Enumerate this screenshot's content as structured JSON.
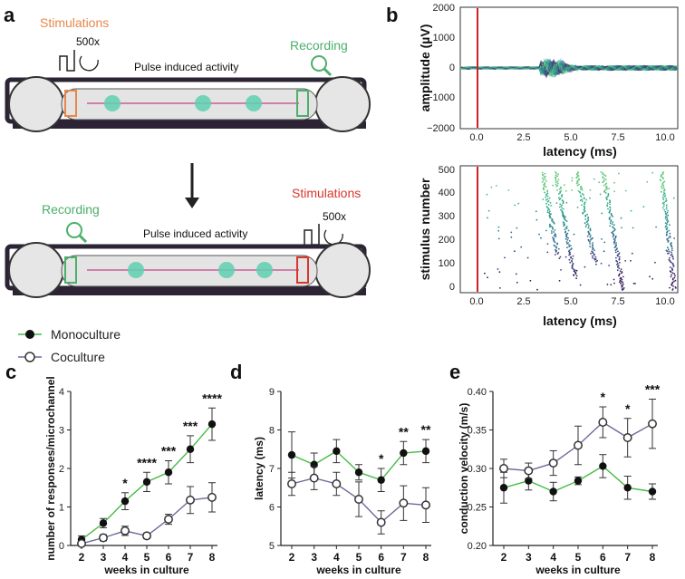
{
  "panel_a": {
    "letter": "a",
    "top": {
      "stim_label": "Stimulations",
      "stim_count": "500x",
      "rec_label": "Recording",
      "activity_label": "Pulse induced activity"
    },
    "bottom": {
      "stim_label": "Stimulations",
      "stim_count": "500x",
      "rec_label": "Recording",
      "activity_label": "Pulse induced activity"
    },
    "colors": {
      "stim_top": "#e8874a",
      "stim_bottom": "#d9352c",
      "recording": "#4caf6a",
      "channel": "#2c2434",
      "soma": "#5fd0b0"
    }
  },
  "panel_b": {
    "letter": "b",
    "top_plot": {
      "ylabel": "amplitude (µV)",
      "xlabel": "latency (ms)",
      "yticks": [
        "2000",
        "1000",
        "0",
        "−1000",
        "−2000"
      ],
      "xticks": [
        "0.0",
        "2.5",
        "5.0",
        "7.5",
        "10.0"
      ]
    },
    "bottom_plot": {
      "ylabel": "stimulus number",
      "xlabel": "latency (ms)",
      "yticks": [
        "500",
        "400",
        "300",
        "200",
        "100",
        "0"
      ],
      "xticks": [
        "0.0",
        "2.5",
        "5.0",
        "7.5",
        "10.0"
      ]
    },
    "stim_marker_color": "#cc2222"
  },
  "legend": {
    "mono_label": "Monoculture",
    "co_label": "Coculture",
    "mono_color": "#44bb44",
    "co_color": "#6a6a9a"
  },
  "chart_data": [
    {
      "panel": "c",
      "type": "line",
      "ylabel": "number of responses/microchannel",
      "xlabel": "weeks in culture",
      "x": [
        2,
        3,
        4,
        5,
        6,
        7,
        8
      ],
      "ylim": [
        0,
        4
      ],
      "yticks": [
        0,
        1,
        2,
        3,
        4
      ],
      "series": [
        {
          "name": "Monoculture",
          "values": [
            0.15,
            0.58,
            1.15,
            1.65,
            1.9,
            2.5,
            3.15
          ],
          "err": [
            0.1,
            0.12,
            0.22,
            0.25,
            0.3,
            0.35,
            0.42
          ]
        },
        {
          "name": "Coculture",
          "values": [
            0.05,
            0.2,
            0.38,
            0.25,
            0.68,
            1.18,
            1.25
          ],
          "err": [
            0.06,
            0.08,
            0.12,
            0.07,
            0.13,
            0.35,
            0.38
          ]
        }
      ],
      "significance": [
        "",
        "",
        "*",
        "****",
        "***",
        "***",
        "****"
      ]
    },
    {
      "panel": "d",
      "type": "line",
      "ylabel": "latency (ms)",
      "xlabel": "weeks in culture",
      "x": [
        2,
        3,
        4,
        5,
        6,
        7,
        8
      ],
      "ylim": [
        5,
        9
      ],
      "yticks": [
        5,
        6,
        7,
        8,
        9
      ],
      "series": [
        {
          "name": "Monoculture",
          "values": [
            7.35,
            7.1,
            7.45,
            6.9,
            6.7,
            7.4,
            7.45
          ],
          "err": [
            0.6,
            0.3,
            0.3,
            0.2,
            0.3,
            0.3,
            0.3
          ]
        },
        {
          "name": "Coculture",
          "values": [
            6.6,
            6.75,
            6.6,
            6.2,
            5.6,
            6.1,
            6.05
          ],
          "err": [
            0.3,
            0.3,
            0.3,
            0.45,
            0.3,
            0.45,
            0.45
          ]
        }
      ],
      "significance": [
        "",
        "",
        "",
        "",
        "*",
        "**",
        "**"
      ]
    },
    {
      "panel": "e",
      "type": "line",
      "ylabel": "conduction velocity (m/s)",
      "xlabel": "weeks in culture",
      "x": [
        2,
        3,
        4,
        5,
        6,
        7,
        8
      ],
      "ylim": [
        0.2,
        0.4
      ],
      "yticks": [
        0.2,
        0.25,
        0.3,
        0.35,
        0.4
      ],
      "yticklabels": [
        "0.20",
        "0.25",
        "0.30",
        "0.35",
        "0.40"
      ],
      "series": [
        {
          "name": "Monoculture",
          "values": [
            0.275,
            0.284,
            0.27,
            0.284,
            0.303,
            0.275,
            0.27
          ],
          "err": [
            0.02,
            0.012,
            0.012,
            0.005,
            0.015,
            0.015,
            0.01
          ]
        },
        {
          "name": "Coculture",
          "values": [
            0.3,
            0.297,
            0.307,
            0.33,
            0.36,
            0.34,
            0.358
          ],
          "err": [
            0.012,
            0.01,
            0.016,
            0.025,
            0.02,
            0.025,
            0.032
          ]
        }
      ],
      "significance": [
        "",
        "",
        "",
        "",
        "*",
        "*",
        "***"
      ]
    }
  ]
}
